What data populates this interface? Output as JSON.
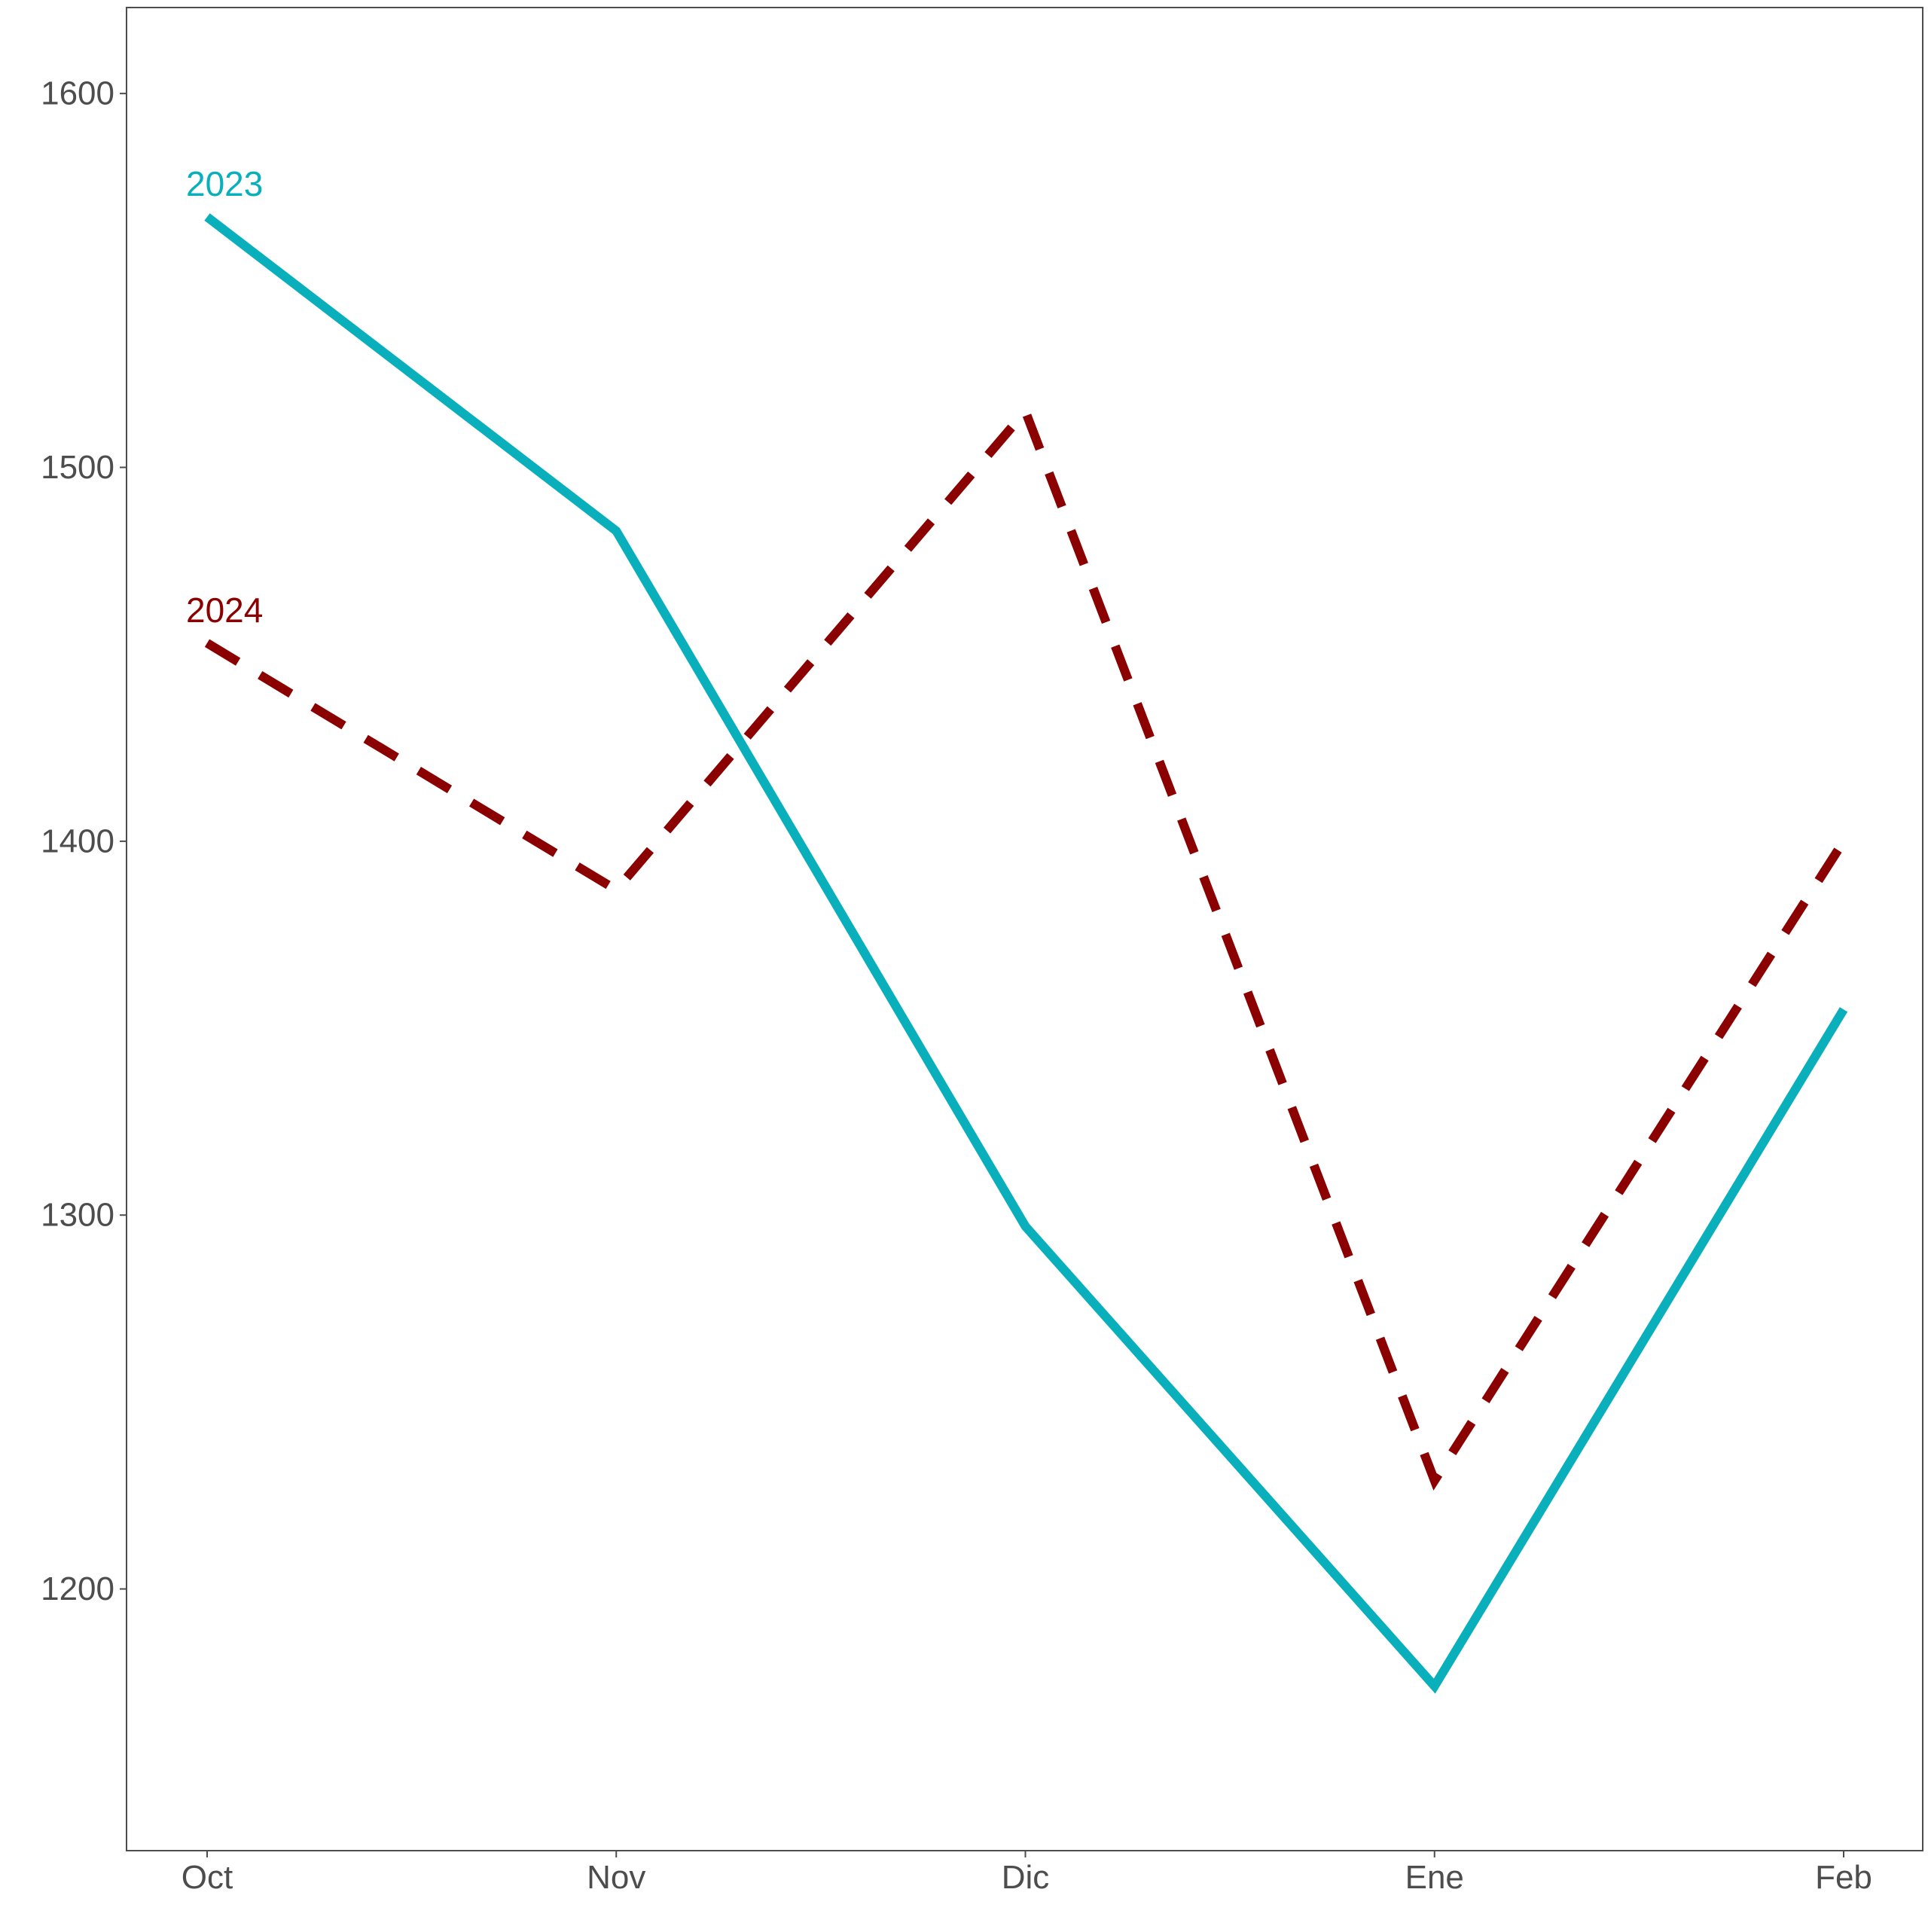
{
  "chart_data": {
    "type": "line",
    "title": "",
    "xlabel": "",
    "ylabel": "",
    "categories": [
      "Oct",
      "Nov",
      "Dic",
      "Ene",
      "Feb"
    ],
    "ylim": [
      1130,
      1623
    ],
    "yticks": [
      1200,
      1300,
      1400,
      1500,
      1600
    ],
    "yticks_labels": [
      "1200",
      "1300",
      "1400",
      "1500",
      "1600"
    ],
    "grid": false,
    "legend": "none",
    "series": [
      {
        "name": "2023",
        "values": [
          1567,
          1483,
          1297,
          1174,
          1355
        ],
        "color": "#0aafbc",
        "dash": "solid"
      },
      {
        "name": "2024",
        "values": [
          1453,
          1387,
          1515,
          1229,
          1400
        ],
        "color": "#8b0000",
        "dash": "dashed"
      }
    ]
  }
}
